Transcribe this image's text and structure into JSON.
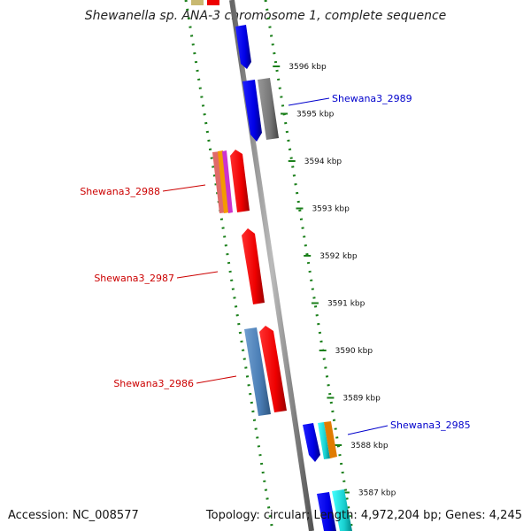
{
  "title": "Shewanella sp. ANA-3 chromosome 1, complete sequence",
  "footer": {
    "accession": "Accession: NC_008577",
    "topology": "Topology: circular; Length: 4,972,204 bp; Genes: 4,245"
  },
  "ticks": [
    "3596 kbp",
    "3595 kbp",
    "3594 kbp",
    "3593 kbp",
    "3592 kbp",
    "3591 kbp",
    "3590 kbp",
    "3589 kbp",
    "3588 kbp",
    "3587 kbp"
  ],
  "gene_labels": {
    "g2989": "Shewana3_2989",
    "g2988": "Shewana3_2988",
    "g2987": "Shewana3_2987",
    "g2986": "Shewana3_2986",
    "g2985": "Shewana3_2985"
  },
  "colors": {
    "forward_label": "#0000cc",
    "reverse_label": "#cc0000",
    "tick": "#1a7f1a",
    "backbone": "#888888"
  }
}
